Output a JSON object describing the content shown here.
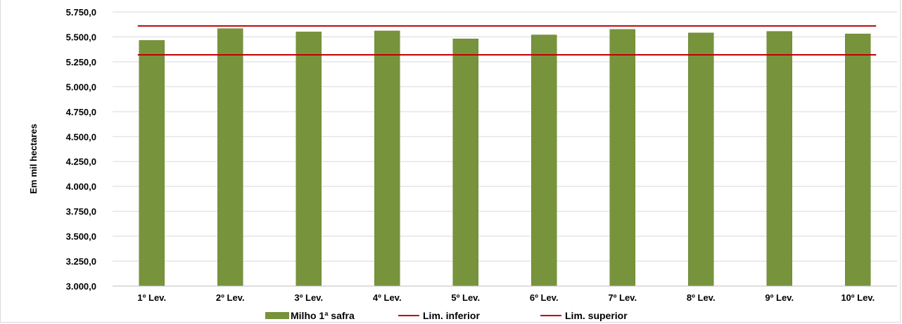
{
  "chart_data": {
    "type": "bar",
    "title": "",
    "xlabel": "",
    "ylabel": "Em mil hectares",
    "categories": [
      "1º Lev.",
      "2º Lev.",
      "3º Lev.",
      "4º Lev.",
      "5º Lev.",
      "6º Lev.",
      "7º Lev.",
      "8º Lev.",
      "9º Lev.",
      "10º Lev."
    ],
    "series": [
      {
        "name": "Milho 1ª safra",
        "type": "bar",
        "color": "#77933c",
        "values": [
          5465,
          5583,
          5550,
          5560,
          5480,
          5520,
          5575,
          5540,
          5555,
          5530
        ]
      },
      {
        "name": "Lim. inferior",
        "type": "line",
        "color": "#c00000",
        "values": [
          5320,
          5320,
          5320,
          5320,
          5320,
          5320,
          5320,
          5320,
          5320,
          5320
        ]
      },
      {
        "name": "Lim. superior",
        "type": "line",
        "color": "#c00000",
        "values": [
          5610,
          5610,
          5610,
          5610,
          5610,
          5610,
          5610,
          5610,
          5610,
          5610
        ]
      }
    ],
    "ylim": [
      3000,
      5750
    ],
    "yticks": [
      3000,
      3250,
      3500,
      3750,
      4000,
      4250,
      4500,
      4750,
      5000,
      5250,
      5500,
      5750
    ],
    "ytick_labels": [
      "3.000,0",
      "3.250,0",
      "3.500,0",
      "3.750,0",
      "4.000,0",
      "4.250,0",
      "4.500,0",
      "4.750,0",
      "5.000,0",
      "5.250,0",
      "5.500,0",
      "5.750,0"
    ],
    "grid": true,
    "legend_position": "bottom"
  }
}
